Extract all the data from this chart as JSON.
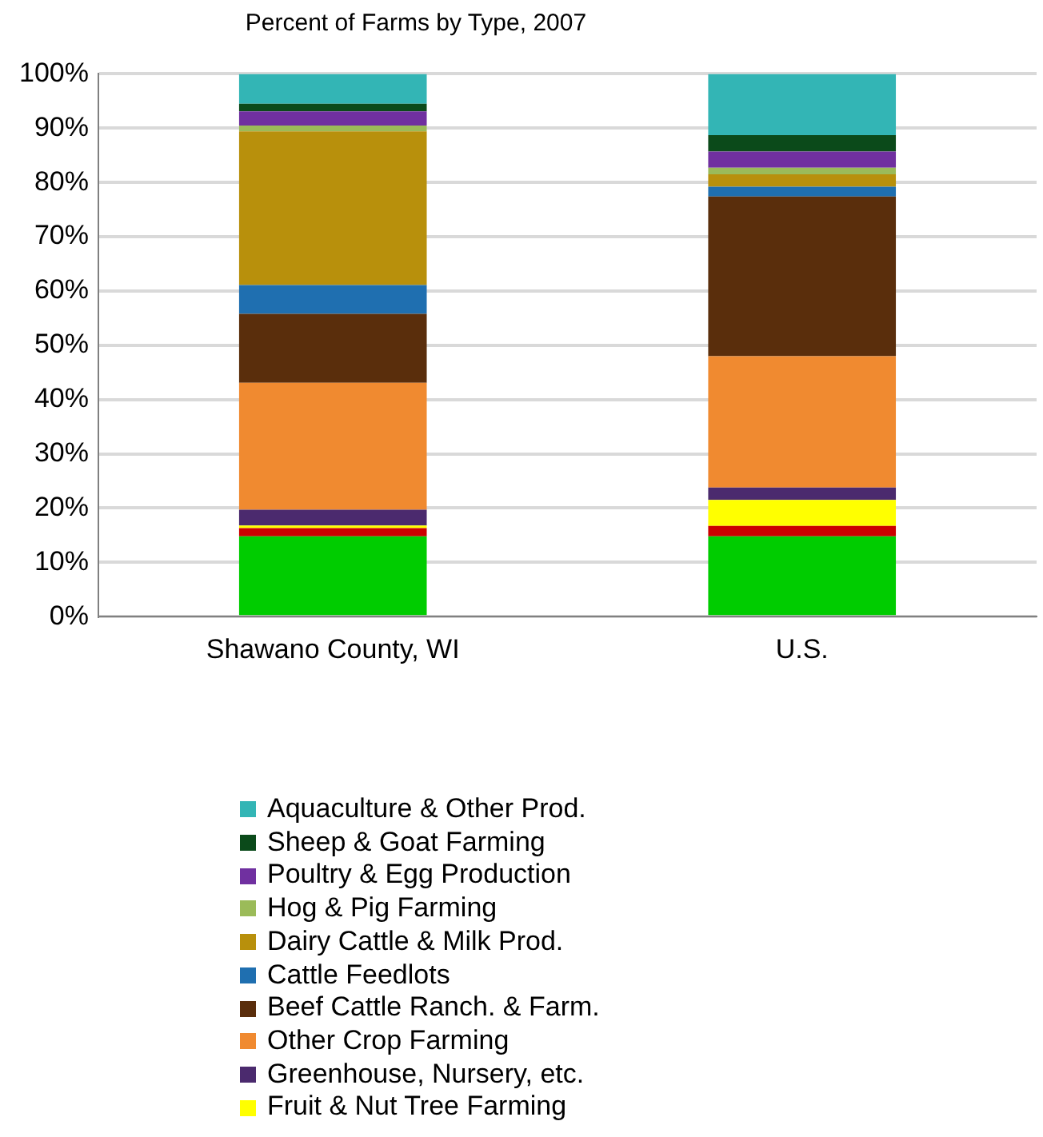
{
  "chart_data": {
    "type": "bar",
    "title": "Percent of Farms by Type, 2007",
    "categories": [
      "Shawano County, WI",
      "U.S."
    ],
    "stacked": true,
    "grid": "y",
    "legend": "bottom",
    "ylim": [
      0,
      100
    ],
    "yticks": [
      {
        "value": 0,
        "label": "0%"
      },
      {
        "value": 10,
        "label": "10%"
      },
      {
        "value": 20,
        "label": "20%"
      },
      {
        "value": 30,
        "label": "30%"
      },
      {
        "value": 40,
        "label": "40%"
      },
      {
        "value": 50,
        "label": "50%"
      },
      {
        "value": 60,
        "label": "60%"
      },
      {
        "value": 70,
        "label": "70%"
      },
      {
        "value": 80,
        "label": "80%"
      },
      {
        "value": 90,
        "label": "90%"
      },
      {
        "value": 100,
        "label": "100%"
      }
    ],
    "series": [
      {
        "color": "#00cc00",
        "values": [
          14.8,
          14.8
        ]
      },
      {
        "color": "#cc0000",
        "values": [
          1.5,
          1.9
        ]
      },
      {
        "name": "Fruit & Nut Tree Farming",
        "color": "#ffff00",
        "values": [
          0.5,
          4.8
        ]
      },
      {
        "name": "Greenhouse, Nursery, etc.",
        "color": "#4b2a6e",
        "values": [
          2.9,
          2.3
        ]
      },
      {
        "name": "Other Crop Farming",
        "color": "#f08a30",
        "values": [
          23.4,
          24.2
        ]
      },
      {
        "name": "Beef Cattle Ranch. & Farm.",
        "color": "#5a2e0c",
        "values": [
          12.7,
          29.4
        ]
      },
      {
        "name": "Cattle Feedlots",
        "color": "#1f6fb0",
        "values": [
          5.3,
          1.8
        ]
      },
      {
        "name": "Dairy Cattle & Milk Prod.",
        "color": "#b8900c",
        "values": [
          28.3,
          2.3
        ]
      },
      {
        "name": "Hog & Pig Farming",
        "color": "#9bbb59",
        "values": [
          1.1,
          1.2
        ]
      },
      {
        "name": "Poultry & Egg Production",
        "color": "#7030a0",
        "values": [
          2.6,
          3.0
        ]
      },
      {
        "name": "Sheep & Goat Farming",
        "color": "#0b4a1a",
        "values": [
          1.4,
          3.0
        ]
      },
      {
        "name": "Aquaculture & Other Prod.",
        "color": "#33b5b5",
        "values": [
          5.5,
          11.3
        ]
      }
    ]
  }
}
